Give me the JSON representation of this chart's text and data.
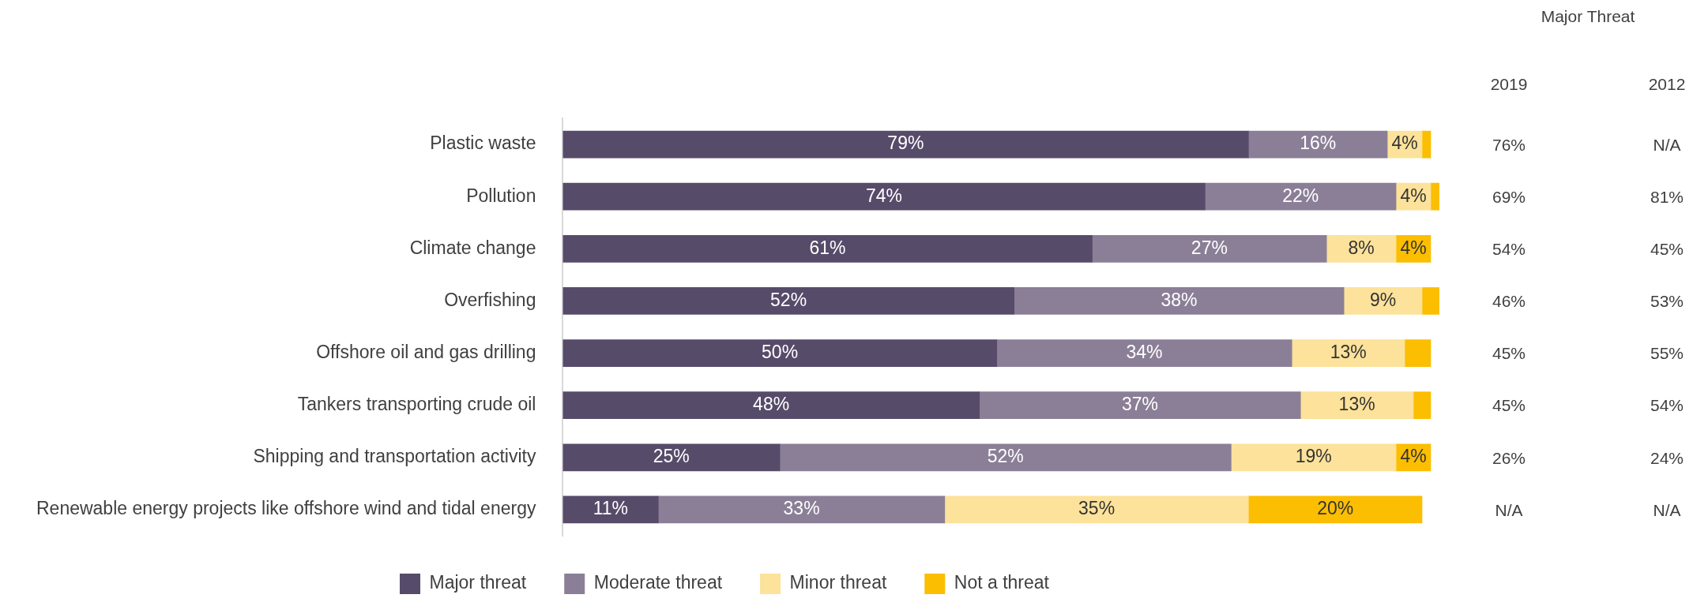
{
  "chart_data": {
    "type": "bar",
    "orientation": "horizontal",
    "stacked": true,
    "legend": "bottom",
    "grid": false,
    "categories": [
      "Plastic waste",
      "Pollution",
      "Climate change",
      "Overfishing",
      "Offshore oil and gas drilling",
      "Tankers transporting crude oil",
      "Shipping and transportation activity",
      "Renewable energy projects like offshore wind and tidal energy"
    ],
    "series": [
      {
        "name": "Major threat",
        "color": "#574b6a",
        "values": [
          79,
          74,
          61,
          52,
          50,
          48,
          25,
          11
        ],
        "value_labels": [
          "79%",
          "74%",
          "61%",
          "52%",
          "50%",
          "48%",
          "25%",
          "11%"
        ]
      },
      {
        "name": "Moderate threat",
        "color": "#8b7f97",
        "values": [
          16,
          22,
          27,
          38,
          34,
          37,
          52,
          33
        ],
        "value_labels": [
          "16%",
          "22%",
          "27%",
          "38%",
          "34%",
          "37%",
          "52%",
          "33%"
        ]
      },
      {
        "name": "Minor threat",
        "color": "#fce29a",
        "values": [
          4,
          4,
          8,
          9,
          13,
          13,
          19,
          35
        ],
        "value_labels": [
          "4%",
          "4%",
          "8%",
          "9%",
          "13%",
          "13%",
          "19%",
          "35%"
        ]
      },
      {
        "name": "Not a threat",
        "color": "#fcbe00",
        "values": [
          1,
          1,
          4,
          2,
          3,
          2,
          4,
          20
        ],
        "value_labels": [
          null,
          null,
          "4%",
          null,
          null,
          null,
          "4%",
          "20%"
        ]
      }
    ],
    "annotations": [
      "Major Threat",
      "2019",
      "2012",
      "76%",
      "N/A",
      "69%",
      "81%",
      "54%",
      "45%",
      "46%",
      "53%",
      "45%",
      "55%",
      "45%",
      "54%",
      "26%",
      "24%",
      "N/A",
      "N/A"
    ]
  }
}
